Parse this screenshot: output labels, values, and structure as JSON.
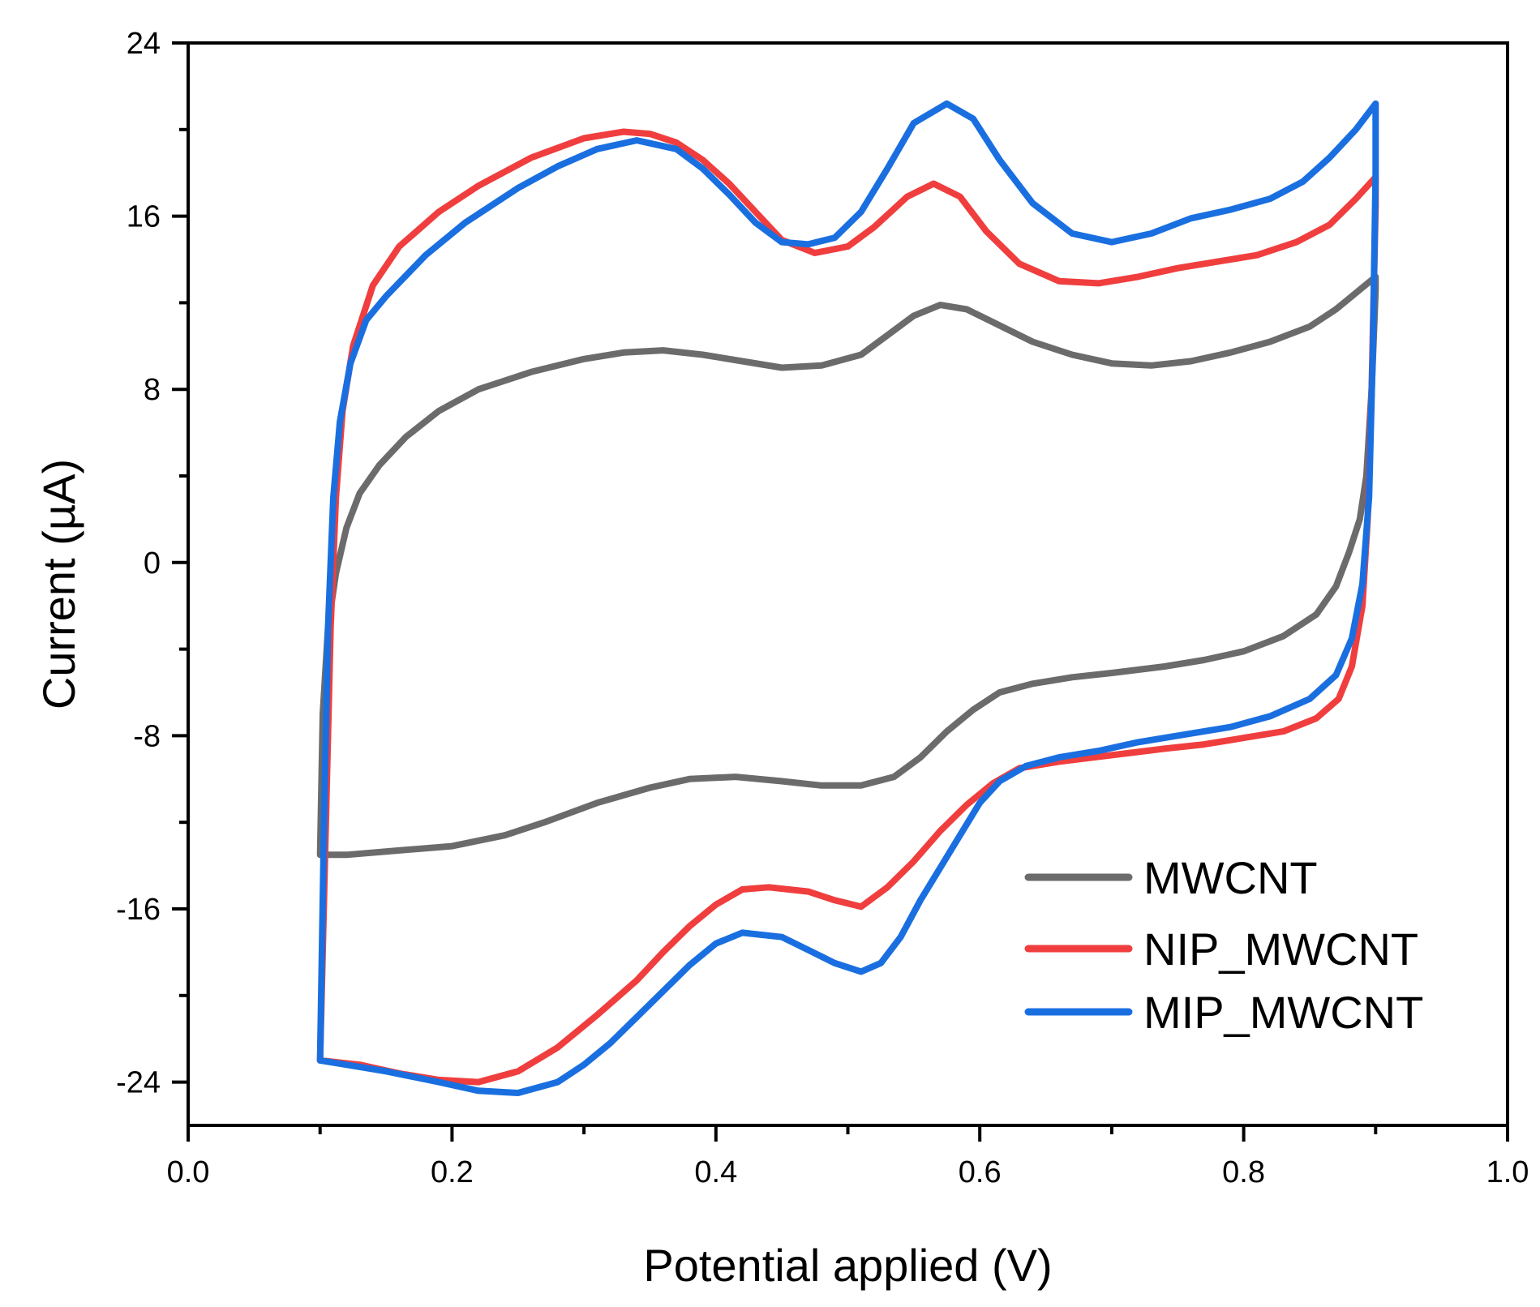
{
  "chart_data": {
    "type": "line",
    "title": "",
    "xlabel": "Potential applied (V)",
    "ylabel": "Current (µA)",
    "xlim": [
      0.0,
      1.0
    ],
    "ylim": [
      -26,
      24
    ],
    "x_ticks": [
      0.0,
      0.2,
      0.4,
      0.6,
      0.8,
      1.0
    ],
    "x_tick_labels": [
      "0.0",
      "0.2",
      "0.4",
      "0.6",
      "0.8",
      "1.0"
    ],
    "y_ticks": [
      24,
      16,
      8,
      0,
      -8,
      -16,
      -24
    ],
    "y_tick_labels": [
      "24",
      "16",
      "8",
      "0",
      "-8",
      "-16",
      "-24"
    ],
    "grid": false,
    "legend_position": "bottom-right",
    "series": [
      {
        "name": "MWCNT",
        "color": "#6b6b6b",
        "points": [
          [
            0.1,
            -13.5
          ],
          [
            0.102,
            -7
          ],
          [
            0.106,
            -3
          ],
          [
            0.112,
            -0.5
          ],
          [
            0.12,
            1.6
          ],
          [
            0.13,
            3.2
          ],
          [
            0.145,
            4.5
          ],
          [
            0.165,
            5.8
          ],
          [
            0.19,
            7.0
          ],
          [
            0.22,
            8.0
          ],
          [
            0.26,
            8.8
          ],
          [
            0.3,
            9.4
          ],
          [
            0.33,
            9.7
          ],
          [
            0.36,
            9.8
          ],
          [
            0.39,
            9.6
          ],
          [
            0.42,
            9.3
          ],
          [
            0.45,
            9.0
          ],
          [
            0.48,
            9.1
          ],
          [
            0.51,
            9.6
          ],
          [
            0.53,
            10.5
          ],
          [
            0.55,
            11.4
          ],
          [
            0.57,
            11.9
          ],
          [
            0.59,
            11.7
          ],
          [
            0.61,
            11.1
          ],
          [
            0.64,
            10.2
          ],
          [
            0.67,
            9.6
          ],
          [
            0.7,
            9.2
          ],
          [
            0.73,
            9.1
          ],
          [
            0.76,
            9.3
          ],
          [
            0.79,
            9.7
          ],
          [
            0.82,
            10.2
          ],
          [
            0.85,
            10.9
          ],
          [
            0.87,
            11.7
          ],
          [
            0.89,
            12.7
          ],
          [
            0.9,
            13.2
          ],
          [
            0.9,
            12.6
          ],
          [
            0.897,
            8
          ],
          [
            0.893,
            4
          ],
          [
            0.888,
            2.0
          ],
          [
            0.88,
            0.5
          ],
          [
            0.87,
            -1.1
          ],
          [
            0.855,
            -2.4
          ],
          [
            0.83,
            -3.4
          ],
          [
            0.8,
            -4.1
          ],
          [
            0.77,
            -4.5
          ],
          [
            0.74,
            -4.8
          ],
          [
            0.7,
            -5.1
          ],
          [
            0.67,
            -5.3
          ],
          [
            0.64,
            -5.6
          ],
          [
            0.615,
            -6.0
          ],
          [
            0.595,
            -6.8
          ],
          [
            0.575,
            -7.8
          ],
          [
            0.555,
            -9.0
          ],
          [
            0.535,
            -9.9
          ],
          [
            0.51,
            -10.3
          ],
          [
            0.48,
            -10.3
          ],
          [
            0.45,
            -10.1
          ],
          [
            0.415,
            -9.9
          ],
          [
            0.38,
            -10.0
          ],
          [
            0.35,
            -10.4
          ],
          [
            0.31,
            -11.1
          ],
          [
            0.27,
            -12.0
          ],
          [
            0.24,
            -12.6
          ],
          [
            0.2,
            -13.1
          ],
          [
            0.16,
            -13.3
          ],
          [
            0.12,
            -13.5
          ],
          [
            0.1,
            -13.5
          ]
        ]
      },
      {
        "name": "NIP_MWCNT",
        "color": "#f03e3e",
        "points": [
          [
            0.1,
            -23.0
          ],
          [
            0.104,
            -13
          ],
          [
            0.108,
            -3
          ],
          [
            0.112,
            3
          ],
          [
            0.117,
            7
          ],
          [
            0.125,
            10.0
          ],
          [
            0.14,
            12.8
          ],
          [
            0.16,
            14.6
          ],
          [
            0.19,
            16.2
          ],
          [
            0.22,
            17.4
          ],
          [
            0.26,
            18.7
          ],
          [
            0.3,
            19.6
          ],
          [
            0.33,
            19.9
          ],
          [
            0.35,
            19.8
          ],
          [
            0.37,
            19.4
          ],
          [
            0.39,
            18.6
          ],
          [
            0.41,
            17.5
          ],
          [
            0.43,
            16.2
          ],
          [
            0.45,
            14.9
          ],
          [
            0.475,
            14.3
          ],
          [
            0.5,
            14.6
          ],
          [
            0.52,
            15.5
          ],
          [
            0.545,
            16.9
          ],
          [
            0.565,
            17.5
          ],
          [
            0.585,
            16.9
          ],
          [
            0.605,
            15.3
          ],
          [
            0.63,
            13.8
          ],
          [
            0.66,
            13.0
          ],
          [
            0.69,
            12.9
          ],
          [
            0.72,
            13.2
          ],
          [
            0.75,
            13.6
          ],
          [
            0.78,
            13.9
          ],
          [
            0.81,
            14.2
          ],
          [
            0.84,
            14.8
          ],
          [
            0.865,
            15.6
          ],
          [
            0.885,
            16.8
          ],
          [
            0.9,
            17.8
          ],
          [
            0.9,
            16.5
          ],
          [
            0.897,
            8
          ],
          [
            0.894,
            2
          ],
          [
            0.89,
            -2
          ],
          [
            0.882,
            -4.8
          ],
          [
            0.872,
            -6.3
          ],
          [
            0.855,
            -7.2
          ],
          [
            0.83,
            -7.8
          ],
          [
            0.8,
            -8.1
          ],
          [
            0.77,
            -8.4
          ],
          [
            0.74,
            -8.6
          ],
          [
            0.7,
            -8.9
          ],
          [
            0.66,
            -9.2
          ],
          [
            0.63,
            -9.5
          ],
          [
            0.61,
            -10.2
          ],
          [
            0.59,
            -11.2
          ],
          [
            0.57,
            -12.4
          ],
          [
            0.55,
            -13.8
          ],
          [
            0.53,
            -15.0
          ],
          [
            0.51,
            -15.9
          ],
          [
            0.49,
            -15.6
          ],
          [
            0.47,
            -15.2
          ],
          [
            0.44,
            -15.0
          ],
          [
            0.42,
            -15.1
          ],
          [
            0.4,
            -15.8
          ],
          [
            0.38,
            -16.8
          ],
          [
            0.36,
            -18.0
          ],
          [
            0.34,
            -19.3
          ],
          [
            0.31,
            -20.9
          ],
          [
            0.28,
            -22.4
          ],
          [
            0.25,
            -23.5
          ],
          [
            0.22,
            -24.0
          ],
          [
            0.19,
            -23.9
          ],
          [
            0.16,
            -23.6
          ],
          [
            0.13,
            -23.2
          ],
          [
            0.1,
            -23.0
          ]
        ]
      },
      {
        "name": "MIP_MWCNT",
        "color": "#1a6fe0",
        "points": [
          [
            0.1,
            -23.0
          ],
          [
            0.103,
            -12
          ],
          [
            0.106,
            -3
          ],
          [
            0.11,
            3
          ],
          [
            0.115,
            6.5
          ],
          [
            0.123,
            9.2
          ],
          [
            0.135,
            11.2
          ],
          [
            0.15,
            12.3
          ],
          [
            0.18,
            14.2
          ],
          [
            0.21,
            15.7
          ],
          [
            0.25,
            17.3
          ],
          [
            0.28,
            18.3
          ],
          [
            0.31,
            19.1
          ],
          [
            0.34,
            19.5
          ],
          [
            0.37,
            19.1
          ],
          [
            0.39,
            18.2
          ],
          [
            0.41,
            17.0
          ],
          [
            0.43,
            15.7
          ],
          [
            0.45,
            14.8
          ],
          [
            0.47,
            14.7
          ],
          [
            0.49,
            15.0
          ],
          [
            0.51,
            16.2
          ],
          [
            0.53,
            18.2
          ],
          [
            0.55,
            20.3
          ],
          [
            0.575,
            21.2
          ],
          [
            0.595,
            20.5
          ],
          [
            0.615,
            18.6
          ],
          [
            0.64,
            16.6
          ],
          [
            0.67,
            15.2
          ],
          [
            0.7,
            14.8
          ],
          [
            0.73,
            15.2
          ],
          [
            0.76,
            15.9
          ],
          [
            0.79,
            16.3
          ],
          [
            0.82,
            16.8
          ],
          [
            0.845,
            17.6
          ],
          [
            0.865,
            18.7
          ],
          [
            0.885,
            20.0
          ],
          [
            0.9,
            21.2
          ],
          [
            0.9,
            18
          ],
          [
            0.898,
            10
          ],
          [
            0.895,
            3
          ],
          [
            0.89,
            -1
          ],
          [
            0.882,
            -3.5
          ],
          [
            0.87,
            -5.2
          ],
          [
            0.85,
            -6.3
          ],
          [
            0.82,
            -7.1
          ],
          [
            0.79,
            -7.6
          ],
          [
            0.76,
            -7.9
          ],
          [
            0.72,
            -8.3
          ],
          [
            0.69,
            -8.7
          ],
          [
            0.66,
            -9.0
          ],
          [
            0.635,
            -9.4
          ],
          [
            0.615,
            -10.1
          ],
          [
            0.6,
            -11.1
          ],
          [
            0.585,
            -12.6
          ],
          [
            0.57,
            -14.1
          ],
          [
            0.555,
            -15.6
          ],
          [
            0.54,
            -17.3
          ],
          [
            0.525,
            -18.5
          ],
          [
            0.51,
            -18.9
          ],
          [
            0.49,
            -18.5
          ],
          [
            0.47,
            -17.9
          ],
          [
            0.45,
            -17.3
          ],
          [
            0.42,
            -17.1
          ],
          [
            0.4,
            -17.6
          ],
          [
            0.38,
            -18.6
          ],
          [
            0.36,
            -19.8
          ],
          [
            0.34,
            -21.0
          ],
          [
            0.32,
            -22.2
          ],
          [
            0.3,
            -23.2
          ],
          [
            0.28,
            -24.0
          ],
          [
            0.25,
            -24.5
          ],
          [
            0.22,
            -24.4
          ],
          [
            0.19,
            -24.0
          ],
          [
            0.15,
            -23.5
          ],
          [
            0.12,
            -23.2
          ],
          [
            0.1,
            -23.0
          ]
        ]
      }
    ]
  }
}
